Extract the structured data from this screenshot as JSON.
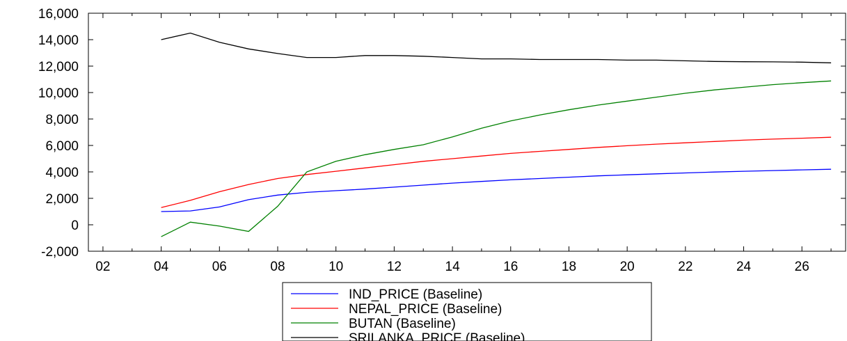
{
  "chart_data": {
    "type": "line",
    "title": "",
    "xlabel": "",
    "ylabel": "",
    "xlim": [
      2001.5,
      2027.5
    ],
    "ylim": [
      -2000,
      16000
    ],
    "x_ticks": [
      2002,
      2004,
      2006,
      2008,
      2010,
      2012,
      2014,
      2016,
      2018,
      2020,
      2022,
      2024,
      2026
    ],
    "x_tick_labels": [
      "02",
      "04",
      "06",
      "08",
      "10",
      "12",
      "14",
      "16",
      "18",
      "20",
      "22",
      "24",
      "26"
    ],
    "y_ticks": [
      -2000,
      0,
      2000,
      4000,
      6000,
      8000,
      10000,
      12000,
      14000,
      16000
    ],
    "y_tick_labels": [
      "-2,000",
      "0",
      "2,000",
      "4,000",
      "6,000",
      "8,000",
      "10,000",
      "12,000",
      "14,000",
      "16,000"
    ],
    "grid": false,
    "legend_position": "bottom-center",
    "x": [
      2004,
      2005,
      2006,
      2007,
      2008,
      2009,
      2010,
      2011,
      2012,
      2013,
      2014,
      2015,
      2016,
      2017,
      2018,
      2019,
      2020,
      2021,
      2022,
      2023,
      2024,
      2025,
      2026,
      2027
    ],
    "series": [
      {
        "name": "IND_PRICE (Baseline)",
        "color": "#0000ff",
        "values": [
          1000,
          1050,
          1350,
          1900,
          2250,
          2450,
          2580,
          2700,
          2850,
          3000,
          3150,
          3280,
          3400,
          3500,
          3600,
          3700,
          3780,
          3850,
          3920,
          3990,
          4050,
          4100,
          4150,
          4200
        ]
      },
      {
        "name": "NEPAL_PRICE (Baseline)",
        "color": "#ff0000",
        "values": [
          1300,
          1850,
          2500,
          3050,
          3500,
          3800,
          4050,
          4300,
          4550,
          4800,
          5000,
          5200,
          5400,
          5550,
          5700,
          5850,
          5980,
          6100,
          6200,
          6300,
          6400,
          6480,
          6550,
          6620
        ]
      },
      {
        "name": "BUTAN (Baseline)",
        "color": "#008000",
        "values": [
          -900,
          200,
          -100,
          -500,
          1400,
          4000,
          4800,
          5300,
          5700,
          6050,
          6650,
          7300,
          7850,
          8300,
          8700,
          9050,
          9350,
          9650,
          9950,
          10200,
          10400,
          10600,
          10750,
          10880
        ]
      },
      {
        "name": "SRILANKA_PRICE (Baseline)",
        "color": "#000000",
        "values": [
          14000,
          14500,
          13800,
          13300,
          12950,
          12650,
          12650,
          12800,
          12800,
          12750,
          12650,
          12550,
          12550,
          12500,
          12500,
          12500,
          12450,
          12450,
          12400,
          12350,
          12330,
          12320,
          12300,
          12250
        ]
      }
    ]
  }
}
